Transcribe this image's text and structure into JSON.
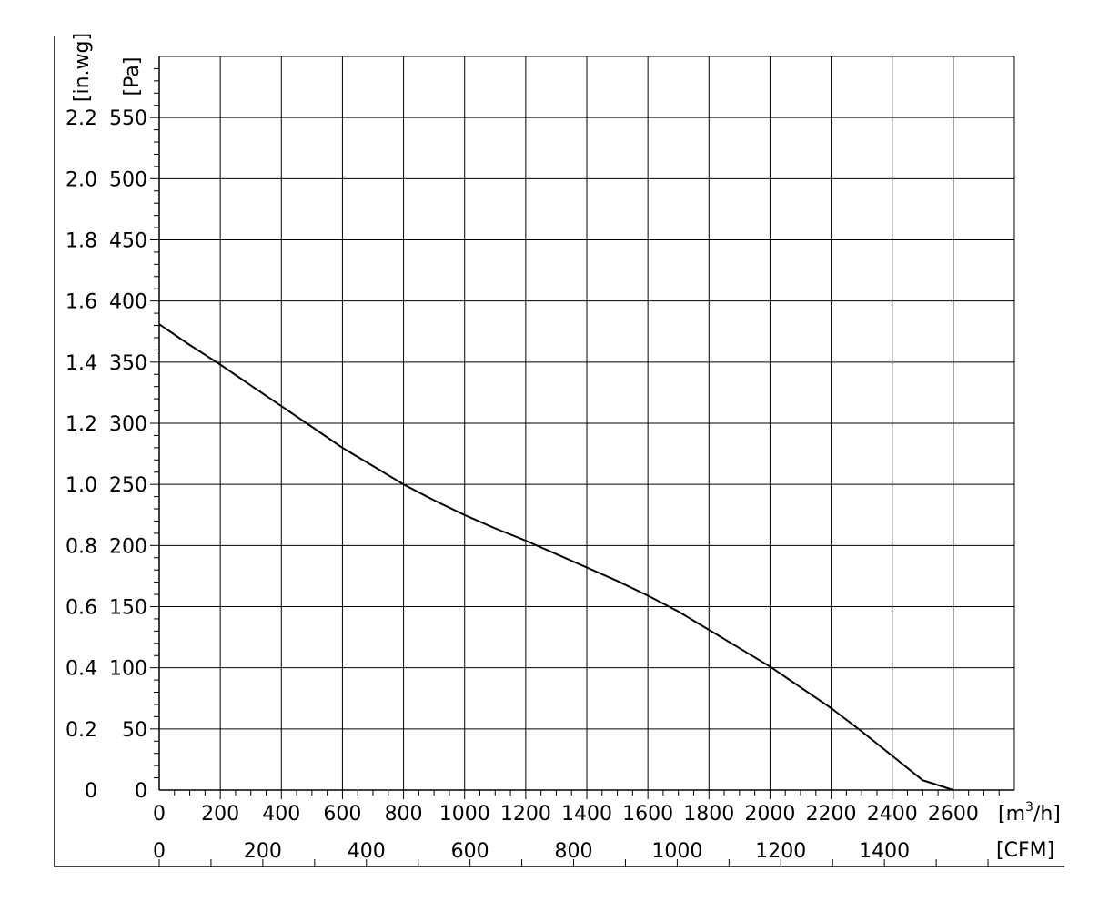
{
  "chart_data": {
    "type": "line",
    "title": "",
    "x_units": "[m³/h]",
    "x_units_base": "[m",
    "x_units_sup": "3",
    "x_units_tail": "/h]",
    "x2_units": "[CFM]",
    "y_units": "[Pa]",
    "y2_units": "[in.wg]",
    "xlim": [
      0,
      2800
    ],
    "ylim": [
      0,
      600
    ],
    "grid": true,
    "x_ticks": [
      "0",
      "200",
      "400",
      "600",
      "800",
      "1000",
      "1200",
      "1400",
      "1600",
      "1800",
      "2000",
      "2200",
      "2400",
      "2600"
    ],
    "x_tick_values": [
      0,
      200,
      400,
      600,
      800,
      1000,
      1200,
      1400,
      1600,
      1800,
      2000,
      2200,
      2400,
      2600
    ],
    "cfm_ticks": [
      "0",
      "200",
      "400",
      "600",
      "800",
      "1000",
      "1200",
      "1400"
    ],
    "cfm_tick_values": [
      0,
      200,
      400,
      600,
      800,
      1000,
      1200,
      1400
    ],
    "y_ticks": [
      "0",
      "50",
      "100",
      "150",
      "200",
      "250",
      "300",
      "350",
      "400",
      "450",
      "500",
      "550"
    ],
    "y_tick_values": [
      0,
      50,
      100,
      150,
      200,
      250,
      300,
      350,
      400,
      450,
      500,
      550
    ],
    "inwg_ticks": [
      "0",
      "0.2",
      "0.4",
      "0.6",
      "0.8",
      "1.0",
      "1.2",
      "1.4",
      "1.6",
      "1.8",
      "2.0",
      "2.2"
    ],
    "inwg_tick_values": [
      0,
      0.2,
      0.4,
      0.6,
      0.8,
      1.0,
      1.2,
      1.4,
      1.6,
      1.8,
      2.0,
      2.2
    ],
    "series": [
      {
        "x": [
          0,
          100,
          200,
          300,
          400,
          500,
          600,
          700,
          800,
          900,
          1000,
          1100,
          1200,
          1300,
          1400,
          1500,
          1600,
          1700,
          1800,
          1900,
          2000,
          2100,
          2200,
          2300,
          2400,
          2500,
          2600
        ],
        "y": [
          381,
          364,
          348,
          331,
          314,
          297,
          280,
          265,
          250,
          237,
          225,
          214,
          204,
          193,
          182,
          171,
          159,
          146,
          131,
          116,
          101,
          84,
          67,
          48,
          28,
          8,
          0
        ],
        "color": "#000000"
      }
    ]
  }
}
